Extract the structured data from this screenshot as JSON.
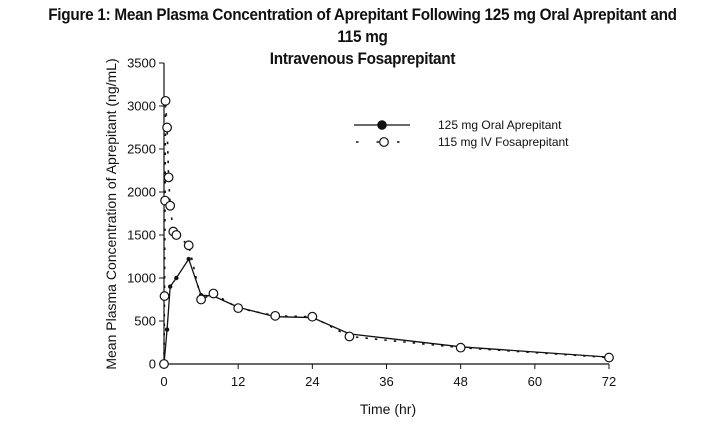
{
  "chart_data": {
    "type": "line",
    "title_line1": "Figure 1: Mean Plasma Concentration of Aprepitant Following 125 mg Oral Aprepitant and 115 mg",
    "title_line2": "Intravenous Fosaprepitant",
    "xlabel": "Time (hr)",
    "ylabel": "Mean Plasma Concentration of Aprepitant (ng/mL)",
    "xlim": [
      0,
      72
    ],
    "ylim": [
      0,
      3500
    ],
    "xticks": [
      0,
      12,
      24,
      36,
      48,
      60,
      72
    ],
    "yticks": [
      0,
      500,
      1000,
      1500,
      2000,
      2500,
      3000,
      3500
    ],
    "grid": false,
    "legend_position": "top-right",
    "series": [
      {
        "name": "125 mg Oral Aprepitant",
        "style": "solid line, filled circle markers",
        "x": [
          0,
          0.5,
          1,
          2,
          4,
          6,
          8,
          12,
          18,
          24,
          30,
          48,
          72
        ],
        "y": [
          0,
          400,
          900,
          1000,
          1220,
          800,
          790,
          660,
          550,
          540,
          350,
          200,
          80
        ]
      },
      {
        "name": "115 mg IV Fosaprepitant",
        "style": "dotted line, open circle markers",
        "x": [
          0,
          0.08,
          0.17,
          0.25,
          0.5,
          0.75,
          1,
          1.5,
          2,
          4,
          6,
          8,
          12,
          18,
          24,
          30,
          48,
          72
        ],
        "y": [
          0,
          790,
          1900,
          3060,
          2750,
          2170,
          1840,
          1540,
          1500,
          1380,
          750,
          820,
          650,
          560,
          550,
          320,
          190,
          75
        ]
      }
    ]
  }
}
